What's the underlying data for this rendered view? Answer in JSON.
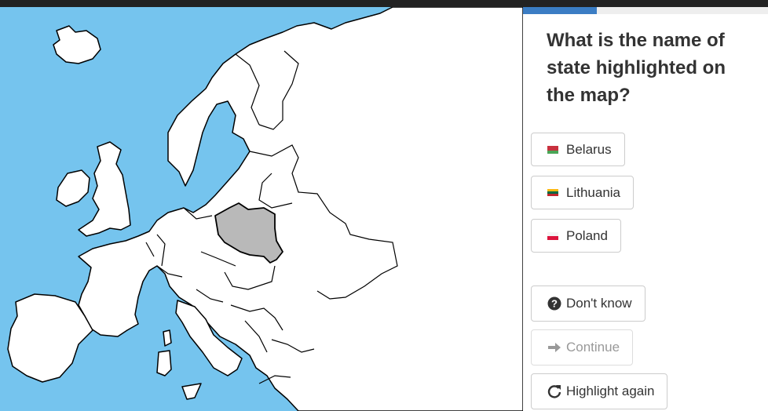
{
  "question": "What is the name of state highlighted on the map?",
  "progress_fraction": 0.3,
  "options": [
    {
      "label": "Belarus",
      "flag": "belarus-flag-icon",
      "flag_colors": [
        "#c8313e",
        "#4aa657"
      ]
    },
    {
      "label": "Lithuania",
      "flag": "lithuania-flag-icon",
      "flag_colors": [
        "#fdb913",
        "#006a44",
        "#c1272d"
      ]
    },
    {
      "label": "Poland",
      "flag": "poland-flag-icon",
      "flag_colors": [
        "#ffffff",
        "#dc143c"
      ]
    }
  ],
  "actions": {
    "dont_know_label": "Don't know",
    "continue_label": "Continue",
    "highlight_again_label": "Highlight again"
  },
  "colors": {
    "sea": "#75c4ee",
    "land": "#ffffff",
    "border": "#000000",
    "highlight": "#b9b9b9",
    "progress": "#3b7dc4"
  },
  "icons": {
    "dont_know": "question-circle-icon",
    "continue": "arrow-right-icon",
    "highlight_again": "refresh-icon"
  }
}
